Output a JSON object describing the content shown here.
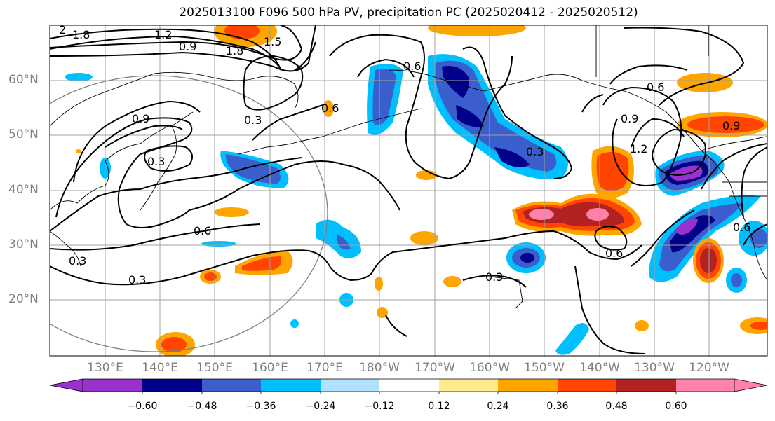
{
  "title": "2025013100 F096 500 hPa PV, precipitation PC (2025020412 - 2025020512)",
  "lat_labels": [
    "60°N",
    "50°N",
    "40°N",
    "30°N",
    "20°N"
  ],
  "lon_labels": [
    "130°E",
    "140°E",
    "150°E",
    "160°E",
    "170°E",
    "180°W",
    "170°W",
    "160°W",
    "150°W",
    "140°W",
    "130°W",
    "120°W"
  ],
  "colorbar": {
    "ticks": [
      "−0.60",
      "−0.48",
      "−0.36",
      "−0.24",
      "−0.12",
      "0.12",
      "0.24",
      "0.36",
      "0.48",
      "0.60"
    ],
    "colors": [
      "#9932cc",
      "#00008b",
      "#3a5fcd",
      "#00bfff",
      "#b0e2ff",
      "#ffffff",
      "#ffeb8a",
      "#ffa500",
      "#ff4500",
      "#b22222",
      "#ff82ab"
    ]
  },
  "contour_labels": [
    "1.8",
    "1.2",
    "0.9",
    "1.8",
    "1.5",
    "0.9",
    "0.3",
    "0.3",
    "0.6",
    "0.3",
    "0.3",
    "0.6",
    "0.6",
    "0.3",
    "0.6",
    "0.9",
    "0.6",
    "1.2",
    "0.3",
    "0.9",
    "0.6",
    "2"
  ]
}
